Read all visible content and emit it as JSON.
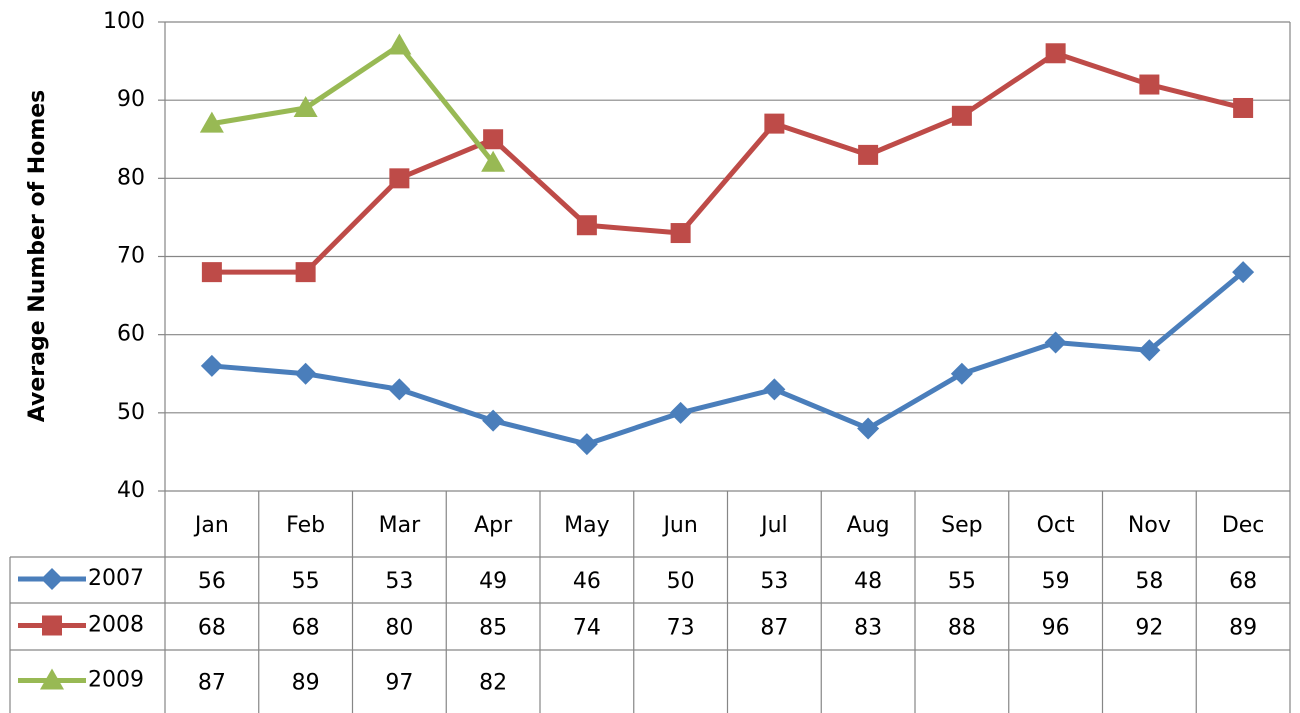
{
  "chart_data": {
    "type": "line",
    "y_label": "Average Number of Homes",
    "categories": [
      "Jan",
      "Feb",
      "Mar",
      "Apr",
      "May",
      "Jun",
      "Jul",
      "Aug",
      "Sep",
      "Oct",
      "Nov",
      "Dec"
    ],
    "series": [
      {
        "name": "2007",
        "color": "#4a7ebb",
        "marker": "diamond",
        "values": [
          56,
          55,
          53,
          49,
          46,
          50,
          53,
          48,
          55,
          59,
          58,
          68
        ]
      },
      {
        "name": "2008",
        "color": "#be4b48",
        "marker": "square",
        "values": [
          68,
          68,
          80,
          85,
          74,
          73,
          87,
          83,
          88,
          96,
          92,
          89
        ]
      },
      {
        "name": "2009",
        "color": "#98b954",
        "marker": "triangle",
        "values": [
          87,
          89,
          97,
          82,
          null,
          null,
          null,
          null,
          null,
          null,
          null,
          null
        ]
      }
    ],
    "ylim": [
      40,
      100
    ],
    "yticks": [
      40,
      50,
      60,
      70,
      80,
      90,
      100
    ],
    "grid": true,
    "data_table": true
  }
}
